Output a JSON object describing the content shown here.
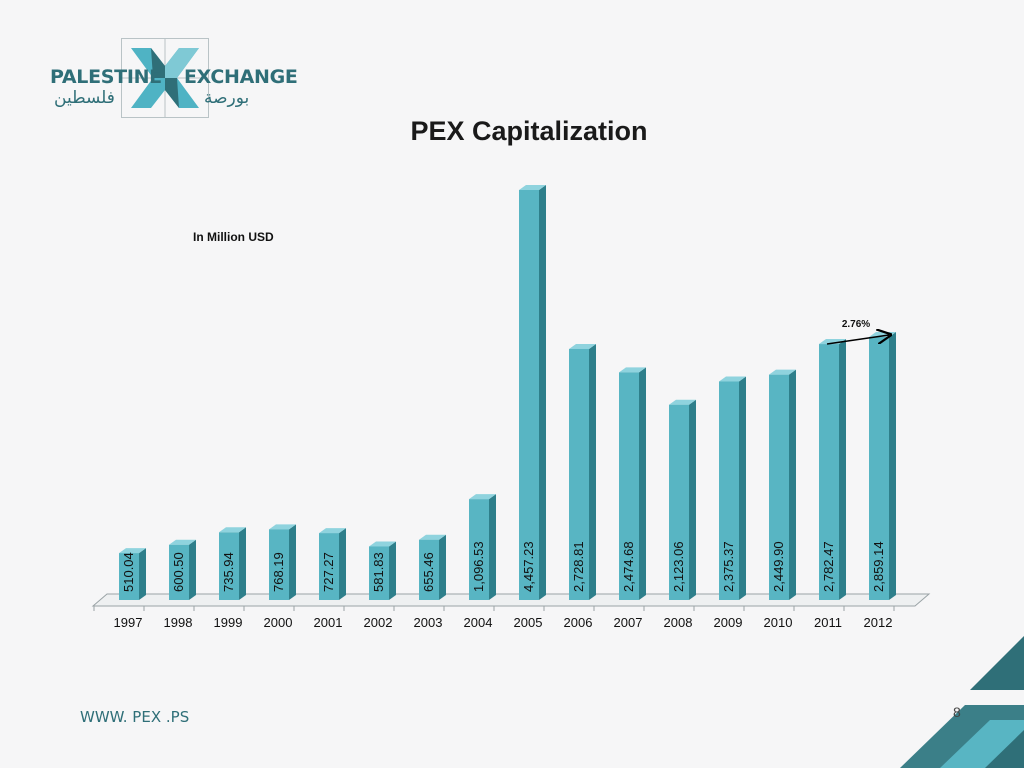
{
  "brand": {
    "logo_text_left": "PALESTINE",
    "logo_text_right": "EXCHANGE",
    "logo_arabic_left": "فلسطين",
    "logo_arabic_right": "بورصة",
    "primary_color": "#2f6f78",
    "accent_color": "#4fb3c4"
  },
  "slide": {
    "footer_url": "WWW. PEX .PS",
    "page_number": "8"
  },
  "chart_data": {
    "type": "bar",
    "title": "PEX Capitalization",
    "unit_note": "In Million USD",
    "categories": [
      "1997",
      "1998",
      "1999",
      "2000",
      "2001",
      "2002",
      "2003",
      "2004",
      "2005",
      "2006",
      "2007",
      "2008",
      "2009",
      "2010",
      "2011",
      "2012"
    ],
    "values": [
      510.04,
      600.5,
      735.94,
      768.19,
      727.27,
      581.83,
      655.46,
      1096.53,
      4457.23,
      2728.81,
      2474.68,
      2123.06,
      2375.37,
      2449.9,
      2782.47,
      2859.14
    ],
    "value_labels": [
      "510.04",
      "600.50",
      "735.94",
      "768.19",
      "727.27",
      "581.83",
      "655.46",
      "1,096.53",
      "4,457.23",
      "2,728.81",
      "2,474.68",
      "2,123.06",
      "2,375.37",
      "2,449.90",
      "2,782.47",
      "2,859.14"
    ],
    "annotation": {
      "text": "2.76%",
      "from": "2011",
      "to": "2012"
    },
    "bar_color": "#58b5c3",
    "grid": false,
    "legend": "none",
    "ylim": [
      0,
      4457.23
    ]
  }
}
